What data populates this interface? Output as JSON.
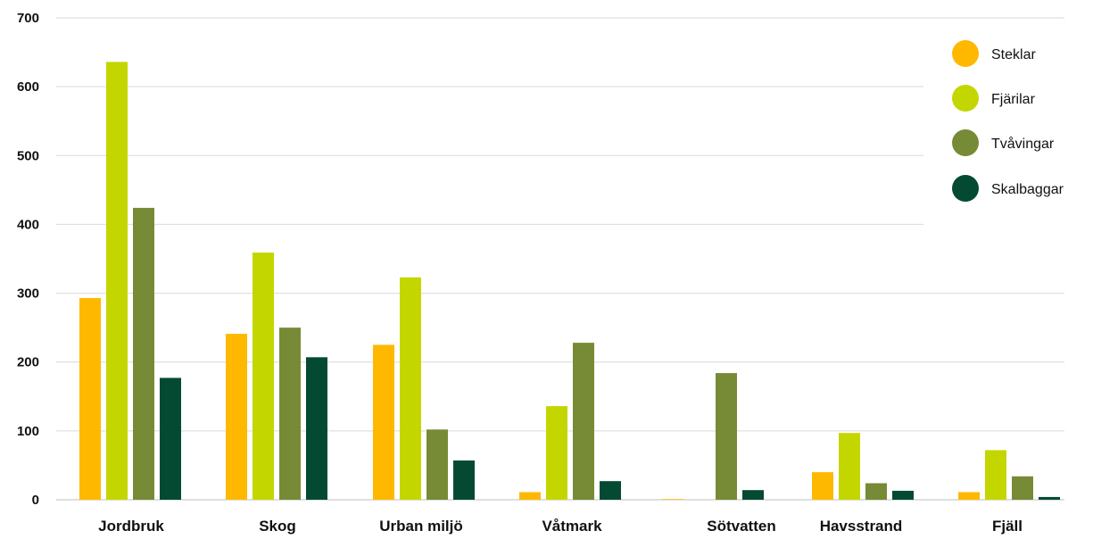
{
  "chart_data": {
    "type": "bar",
    "categories": [
      "Jordbruk",
      "Skog",
      "Urban miljö",
      "Våtmark",
      "Sötvatten",
      "Havsstrand",
      "Fjäll"
    ],
    "series": [
      {
        "name": "Steklar",
        "color": "#FFB800",
        "values": [
          293,
          241,
          225,
          11,
          1,
          40,
          11
        ]
      },
      {
        "name": "Fjärilar",
        "color": "#C4D600",
        "values": [
          636,
          359,
          323,
          136,
          0,
          97,
          72
        ]
      },
      {
        "name": "Tvåvingar",
        "color": "#778A35",
        "values": [
          424,
          250,
          102,
          228,
          184,
          24,
          34
        ]
      },
      {
        "name": "Skalbaggar",
        "color": "#044A32",
        "values": [
          177,
          207,
          57,
          27,
          14,
          13,
          4
        ]
      }
    ],
    "ylim": [
      0,
      700
    ],
    "yticks": [
      0,
      100,
      200,
      300,
      400,
      500,
      600,
      700
    ],
    "grid": true,
    "legend_position": "top-right"
  }
}
